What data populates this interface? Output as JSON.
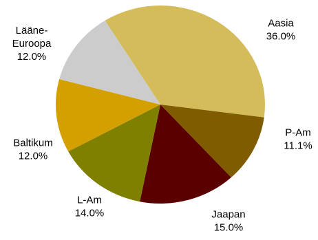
{
  "chart_data": {
    "type": "pie",
    "title": "",
    "start_angle_deg": -122,
    "direction": "clockwise",
    "slices": [
      {
        "label": "Aasia",
        "value": 36.0,
        "value_label": "36.0%",
        "color": "#d4bc5a"
      },
      {
        "label": "P-Am",
        "value": 11.1,
        "value_label": "11.1%",
        "color": "#7f5c00"
      },
      {
        "label": "Jaapan",
        "value": 15.0,
        "value_label": "15.0%",
        "color": "#5a0000"
      },
      {
        "label": "L-Am",
        "value": 14.0,
        "value_label": "14.0%",
        "color": "#7f7f00"
      },
      {
        "label": "Baltikum",
        "value": 12.0,
        "value_label": "12.0%",
        "color": "#d4a000"
      },
      {
        "label": "Lääne-Euroopa",
        "label_lines": [
          "Lääne-",
          "Euroopa"
        ],
        "value": 12.0,
        "value_label": "12.0%",
        "color": "#cccccc"
      }
    ],
    "legend": "none"
  }
}
